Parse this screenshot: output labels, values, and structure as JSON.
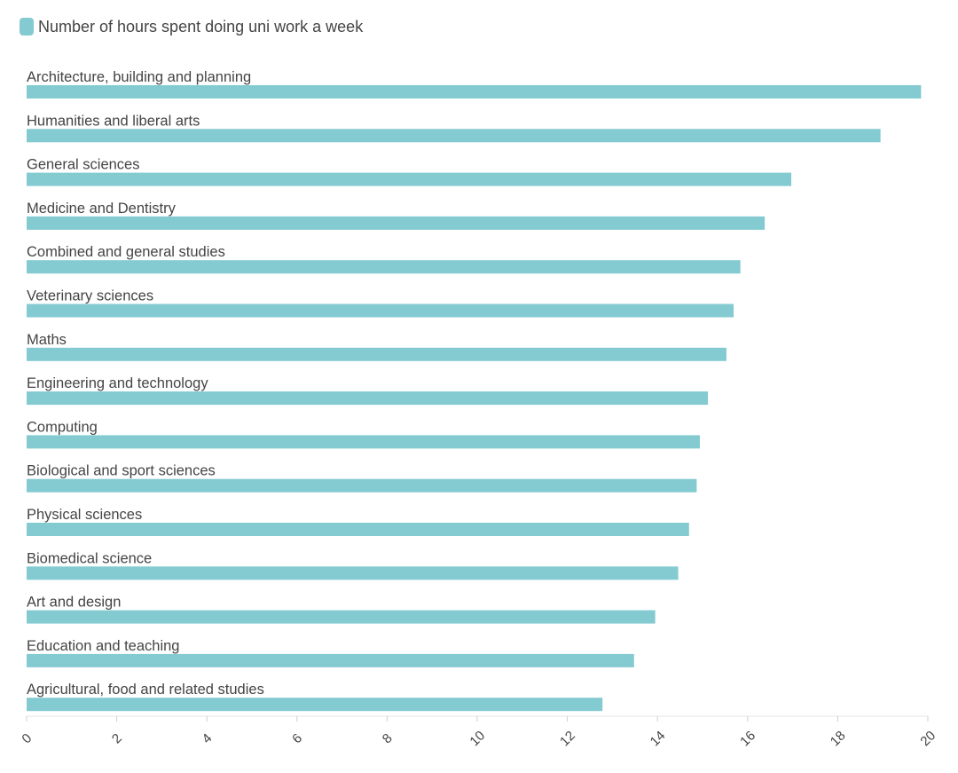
{
  "legend": {
    "label": "Number of hours spent doing uni work a week",
    "color": "#83cad1"
  },
  "chart_data": {
    "type": "bar",
    "orientation": "horizontal",
    "categories": [
      "Architecture, building and planning",
      "Humanities and liberal arts",
      "General sciences",
      "Medicine and Dentistry",
      "Combined and general studies",
      "Veterinary sciences",
      "Maths",
      "Engineering and technology",
      "Computing",
      "Biological and sport sciences",
      "Physical sciences",
      "Biomedical science",
      "Art and design",
      "Education and teaching",
      "Agricultural, food and related studies"
    ],
    "series": [
      {
        "name": "Number of hours spent doing uni work a week",
        "color": "#83cad1",
        "values": [
          19.85,
          18.95,
          16.97,
          16.38,
          15.84,
          15.69,
          15.53,
          15.12,
          14.94,
          14.87,
          14.7,
          14.46,
          13.95,
          13.48,
          12.78
        ]
      }
    ],
    "x_ticks": [
      "0",
      "2",
      "4",
      "6",
      "8",
      "10",
      "12",
      "14",
      "16",
      "18",
      "20"
    ],
    "xlim": [
      0,
      20
    ],
    "grid": false,
    "legend_position": "top-left",
    "xlabel": "",
    "ylabel": ""
  }
}
